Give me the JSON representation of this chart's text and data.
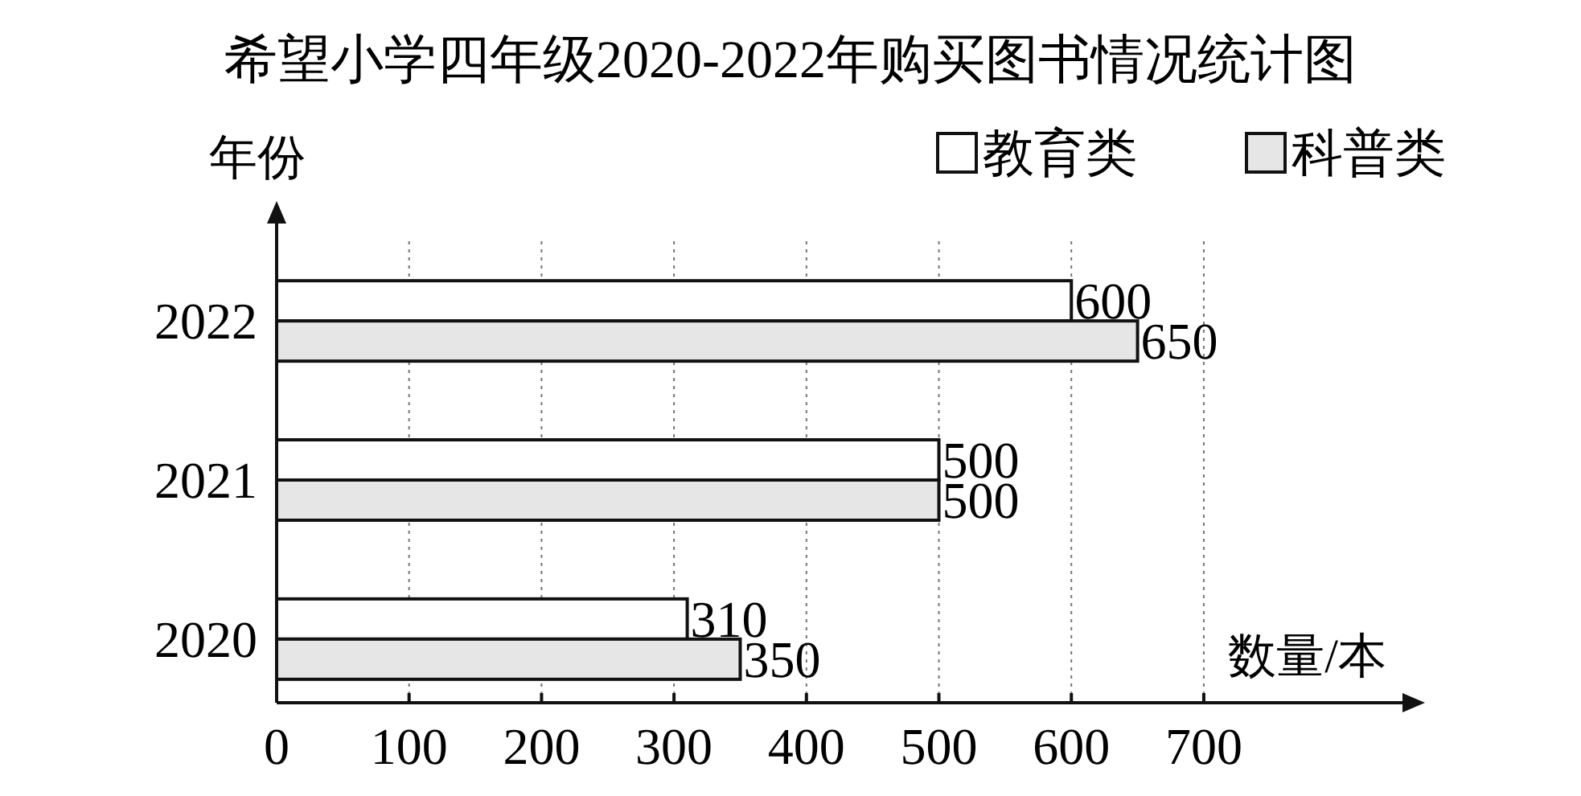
{
  "chart_data": {
    "type": "bar",
    "orientation": "horizontal",
    "title": "希望小学四年级2020-2022年购买图书情况统计图",
    "ylabel": "年份",
    "xlabel": "数量/本",
    "categories": [
      "2022",
      "2021",
      "2020"
    ],
    "series": [
      {
        "name": "教育类",
        "color": "#ffffff",
        "values": [
          600,
          500,
          310
        ]
      },
      {
        "name": "科普类",
        "color": "#e6e6e6",
        "values": [
          650,
          500,
          350
        ]
      }
    ],
    "xlim": [
      0,
      850
    ],
    "xticks": [
      0,
      100,
      200,
      300,
      400,
      500,
      600,
      700
    ],
    "grid": "x",
    "legend": "top right",
    "data_labels": true
  }
}
